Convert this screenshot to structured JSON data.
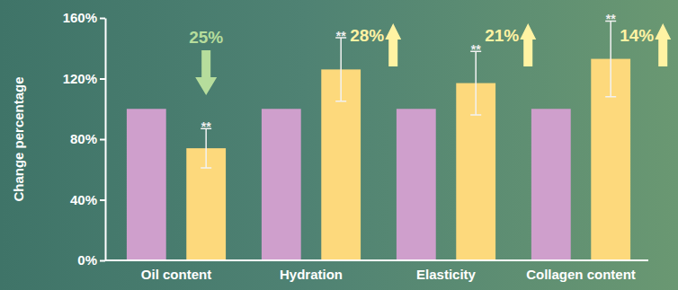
{
  "chart_data": {
    "type": "bar",
    "y_label": "Change percentage",
    "categories": [
      "Oil content",
      "Hydration",
      "Elasticity",
      "Collagen content"
    ],
    "series": [
      {
        "color": "#cf9fcc",
        "values": [
          100,
          100,
          100,
          100
        ]
      },
      {
        "color": "#fdd97c",
        "values": [
          74,
          126,
          117,
          133
        ],
        "errors": [
          13,
          21,
          21,
          25
        ],
        "significance": [
          "**",
          "**",
          "**",
          "**"
        ]
      }
    ],
    "annotations": [
      "25%",
      "28%",
      "21%",
      "14%"
    ],
    "ylim": [
      0,
      160
    ],
    "yticks": [
      {
        "value": 0,
        "label": "0%"
      },
      {
        "value": 40,
        "label": "40%"
      },
      {
        "value": 80,
        "label": "80%"
      },
      {
        "value": 120,
        "label": "120%"
      },
      {
        "value": 160,
        "label": "160%"
      }
    ],
    "grid": false
  }
}
